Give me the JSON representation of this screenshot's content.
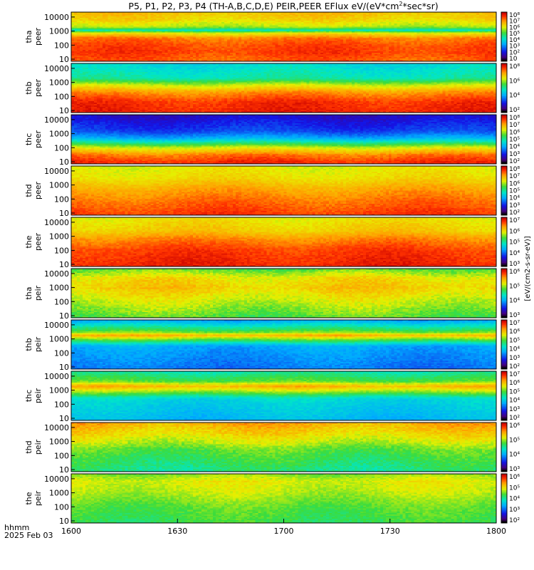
{
  "chart_data": {
    "type": "heatmap",
    "title": "P5, P1, P2, P3, P4 (TH-A,B,C,D,E) PEIR,PEER EFlux eV/(eV*cm",
    "title_sup": "2",
    "title_tail": "*sec*sr)",
    "time_label_line1": "hhmm",
    "time_label_line2": "2025 Feb 03",
    "x_tick_labels": [
      "1600",
      "1630",
      "1700",
      "1730",
      "1800"
    ],
    "x_values": [
      1600,
      1630,
      1700,
      1730,
      1800
    ],
    "x_range": [
      "16:00",
      "18:00"
    ],
    "colorbar_units": "[eV/(cm2-s-sr-eV)]",
    "y_scale": "log",
    "panels": [
      {
        "id": "tha-peer",
        "probe": "tha",
        "species": "peer",
        "yticks": [
          "10",
          "100",
          "1000",
          "10000"
        ],
        "cbar_ticks": [
          "10",
          "10²",
          "10³",
          "10⁴",
          "10⁵",
          "10⁶",
          "10⁷",
          "10⁸"
        ],
        "cmin": 1,
        "cmax": 8,
        "bands": [
          {
            "e": 1,
            "c": 7.2
          },
          {
            "e": 1.5,
            "c": 7.4
          },
          {
            "e": 2.0,
            "c": 7.3
          },
          {
            "e": 2.5,
            "c": 7.0
          },
          {
            "e": 2.9,
            "c": 5.8
          },
          {
            "e": 3.05,
            "c": 4.2
          },
          {
            "e": 3.3,
            "c": 5.6
          },
          {
            "e": 3.8,
            "c": 6.2
          },
          {
            "e": 4.3,
            "c": 6.4
          }
        ]
      },
      {
        "id": "thb-peer",
        "probe": "thb",
        "species": "peer",
        "yticks": [
          "10",
          "100",
          "1000",
          "10000"
        ],
        "cbar_ticks": [
          "10²",
          "10⁴",
          "10⁶",
          "10⁸"
        ],
        "cmin": 1,
        "cmax": 8,
        "bands": [
          {
            "e": 1,
            "c": 7.6
          },
          {
            "e": 1.6,
            "c": 7.5
          },
          {
            "e": 2.3,
            "c": 6.8
          },
          {
            "e": 2.8,
            "c": 5.8
          },
          {
            "e": 3.3,
            "c": 4.4
          },
          {
            "e": 4.3,
            "c": 4.0
          }
        ]
      },
      {
        "id": "thc-peer",
        "probe": "thc",
        "species": "peer",
        "yticks": [
          "10",
          "100",
          "1000",
          "10000"
        ],
        "cbar_ticks": [
          "10²",
          "10³",
          "10⁴",
          "10⁵",
          "10⁶",
          "10⁷",
          "10⁸"
        ],
        "cmin": 1,
        "cmax": 8,
        "bands": [
          {
            "e": 1,
            "c": 7.5
          },
          {
            "e": 1.5,
            "c": 7.0
          },
          {
            "e": 2.0,
            "c": 5.8
          },
          {
            "e": 2.7,
            "c": 3.4
          },
          {
            "e": 3.2,
            "c": 2.6
          },
          {
            "e": 4.3,
            "c": 2.0
          }
        ]
      },
      {
        "id": "thd-peer",
        "probe": "thd",
        "species": "peer",
        "yticks": [
          "10",
          "100",
          "1000",
          "10000"
        ],
        "cbar_ticks": [
          "10²",
          "10³",
          "10⁴",
          "10⁵",
          "10⁶",
          "10⁷",
          "10⁸"
        ],
        "cmin": 1,
        "cmax": 8,
        "bands": [
          {
            "e": 1,
            "c": 7.4
          },
          {
            "e": 2.0,
            "c": 7.0
          },
          {
            "e": 2.8,
            "c": 6.6
          },
          {
            "e": 3.5,
            "c": 6.1
          },
          {
            "e": 4.3,
            "c": 5.9
          }
        ]
      },
      {
        "id": "the-peer",
        "probe": "the",
        "species": "peer",
        "yticks": [
          "10",
          "100",
          "1000",
          "10000"
        ],
        "cbar_ticks": [
          "10³",
          "10⁴",
          "10⁵",
          "10⁶",
          "10⁷"
        ],
        "cmin": 1,
        "cmax": 8,
        "bands": [
          {
            "e": 1,
            "c": 7.6
          },
          {
            "e": 2.0,
            "c": 7.4
          },
          {
            "e": 2.8,
            "c": 6.9
          },
          {
            "e": 3.4,
            "c": 6.3
          },
          {
            "e": 4.3,
            "c": 6.0
          }
        ]
      },
      {
        "id": "tha-peir",
        "probe": "tha",
        "species": "peir",
        "yticks": [
          "10",
          "100",
          "1000",
          "10000"
        ],
        "cbar_ticks": [
          "10³",
          "10⁴",
          "10⁵",
          "10⁶"
        ],
        "cmin": 2,
        "cmax": 7,
        "bands": [
          {
            "e": 1,
            "c": 5.0
          },
          {
            "e": 2.0,
            "c": 5.4
          },
          {
            "e": 3.0,
            "c": 5.8
          },
          {
            "e": 3.7,
            "c": 5.6
          },
          {
            "e": 4.3,
            "c": 5.0
          }
        ]
      },
      {
        "id": "thb-peir",
        "probe": "thb",
        "species": "peir",
        "yticks": [
          "10",
          "100",
          "1000",
          "10000"
        ],
        "cbar_ticks": [
          "10²",
          "10³",
          "10⁴",
          "10⁵",
          "10⁶",
          "10⁷"
        ],
        "cmin": 1,
        "cmax": 8,
        "bands": [
          {
            "e": 1,
            "c": 3.0
          },
          {
            "e": 2.5,
            "c": 3.4
          },
          {
            "e": 3.0,
            "c": 5.4
          },
          {
            "e": 3.25,
            "c": 6.6
          },
          {
            "e": 3.5,
            "c": 5.2
          },
          {
            "e": 4.3,
            "c": 3.4
          }
        ]
      },
      {
        "id": "thc-peir",
        "probe": "thc",
        "species": "peir",
        "yticks": [
          "10",
          "100",
          "1000",
          "10000"
        ],
        "cbar_ticks": [
          "10²",
          "10³",
          "10⁴",
          "10⁵",
          "10⁶",
          "10⁷"
        ],
        "cmin": 1,
        "cmax": 8,
        "bands": [
          {
            "e": 1,
            "c": 3.6
          },
          {
            "e": 2.4,
            "c": 4.0
          },
          {
            "e": 3.0,
            "c": 5.8
          },
          {
            "e": 3.3,
            "c": 6.6
          },
          {
            "e": 3.6,
            "c": 5.2
          },
          {
            "e": 4.3,
            "c": 4.4
          }
        ]
      },
      {
        "id": "thd-peir",
        "probe": "thd",
        "species": "peir",
        "yticks": [
          "10",
          "100",
          "1000",
          "10000"
        ],
        "cbar_ticks": [
          "10³",
          "10⁴",
          "10⁵",
          "10⁶"
        ],
        "cmin": 2,
        "cmax": 7,
        "bands": [
          {
            "e": 1,
            "c": 4.6
          },
          {
            "e": 2.4,
            "c": 5.0
          },
          {
            "e": 3.0,
            "c": 5.4
          },
          {
            "e": 3.8,
            "c": 5.8
          },
          {
            "e": 4.3,
            "c": 6.0
          }
        ]
      },
      {
        "id": "the-peir",
        "probe": "the",
        "species": "peir",
        "yticks": [
          "10",
          "100",
          "1000",
          "10000"
        ],
        "cbar_ticks": [
          "10²",
          "10³",
          "10⁴",
          "10⁵",
          "10⁶"
        ],
        "cmin": 1,
        "cmax": 7,
        "bands": [
          {
            "e": 1,
            "c": 4.4
          },
          {
            "e": 2.0,
            "c": 4.6
          },
          {
            "e": 3.0,
            "c": 5.0
          },
          {
            "e": 3.8,
            "c": 5.2
          },
          {
            "e": 4.3,
            "c": 4.8
          }
        ]
      }
    ]
  }
}
